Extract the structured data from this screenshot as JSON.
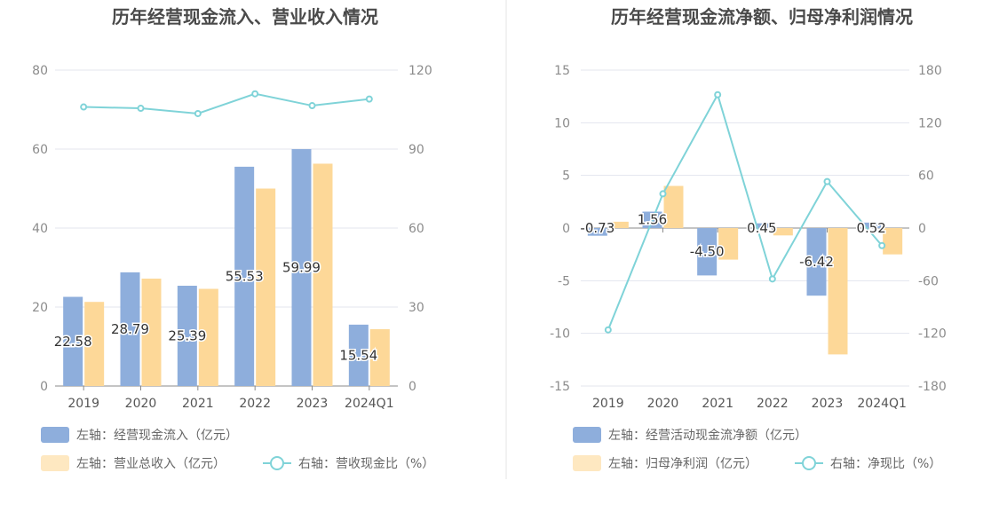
{
  "colors": {
    "bar_left": "#8eaedc",
    "bar_right": "#fdd898",
    "line": "#7fd3d8",
    "grid": "#e3e5ee",
    "axis": "#8a8a8a",
    "divider": "#e6e6e6"
  },
  "chart_data": [
    {
      "type": "bar",
      "title": "历年经营现金流入、营业收入情况",
      "categories": [
        "2019",
        "2020",
        "2021",
        "2022",
        "2023",
        "2024Q1"
      ],
      "left_axis": {
        "ylim": [
          0,
          80
        ],
        "ticks": [
          "0",
          "20",
          "40",
          "60",
          "80"
        ]
      },
      "right_axis": {
        "ylim": [
          0,
          120
        ],
        "ticks": [
          "0",
          "30",
          "60",
          "90",
          "120"
        ]
      },
      "series": [
        {
          "name": "左轴：经营现金流入（亿元）",
          "axis": "left",
          "kind": "bar",
          "color_key": "bar_left",
          "values": [
            22.58,
            28.79,
            25.39,
            55.53,
            59.99,
            15.54
          ],
          "labels": [
            "22.58",
            "28.79",
            "25.39",
            "55.53",
            "59.99",
            "15.54"
          ]
        },
        {
          "name": "左轴：营业总收入（亿元）",
          "axis": "left",
          "kind": "bar",
          "color_key": "bar_right",
          "values": [
            21.3,
            27.2,
            24.6,
            50.0,
            56.3,
            14.4
          ]
        },
        {
          "name": "右轴：营收现金比（%）",
          "axis": "right",
          "kind": "line",
          "color_key": "line",
          "values": [
            106.0,
            105.5,
            103.5,
            111.0,
            106.5,
            109.0
          ]
        }
      ]
    },
    {
      "type": "bar",
      "title": "历年经营现金流净额、归母净利润情况",
      "categories": [
        "2019",
        "2020",
        "2021",
        "2022",
        "2023",
        "2024Q1"
      ],
      "left_axis": {
        "ylim": [
          -15,
          15
        ],
        "ticks": [
          "-15",
          "-10",
          "-5",
          "0",
          "5",
          "10",
          "15"
        ]
      },
      "right_axis": {
        "ylim": [
          -180,
          180
        ],
        "ticks": [
          "-180",
          "-120",
          "-60",
          "0",
          "60",
          "120",
          "180"
        ]
      },
      "series": [
        {
          "name": "左轴：经营活动现金流净额（亿元）",
          "axis": "left",
          "kind": "bar",
          "color_key": "bar_left",
          "values": [
            -0.73,
            1.56,
            -4.5,
            0.45,
            -6.42,
            0.52
          ],
          "labels": [
            "-0.73",
            "1.56",
            "-4.50",
            "0.45",
            "-6.42",
            "0.52"
          ]
        },
        {
          "name": "左轴：归母净利润（亿元）",
          "axis": "left",
          "kind": "bar",
          "color_key": "bar_right",
          "values": [
            0.6,
            4.0,
            -3.0,
            -0.7,
            -12.0,
            -2.5
          ]
        },
        {
          "name": "右轴：净现比（%）",
          "axis": "right",
          "kind": "line",
          "color_key": "line",
          "values": [
            -116,
            39,
            152,
            -58,
            53,
            -20
          ]
        }
      ]
    }
  ]
}
